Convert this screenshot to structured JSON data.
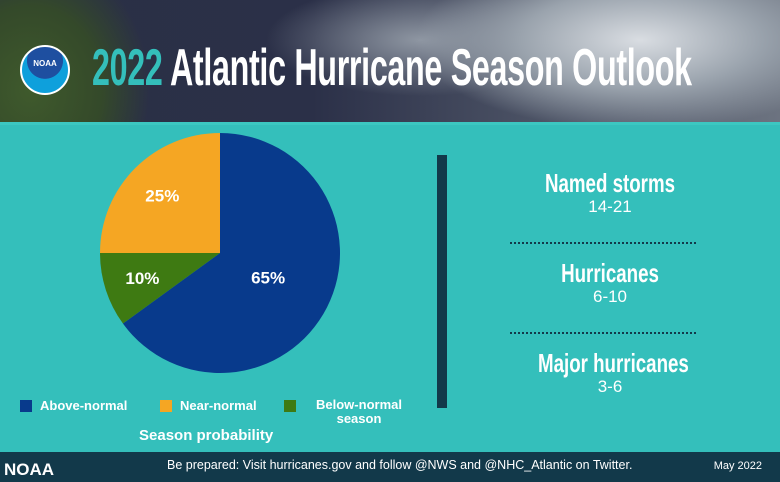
{
  "header": {
    "logo_text": "NOAA",
    "title_year": "2022",
    "title_rest": "Atlantic Hurricane Season Outlook"
  },
  "chart_data": {
    "type": "pie",
    "title": "Season probability",
    "categories": [
      "Above-normal",
      "Below-normal season",
      "Near-normal"
    ],
    "values": [
      65,
      10,
      25
    ],
    "data_labels": [
      "65%",
      "10%",
      "25%"
    ],
    "colors": [
      "#083a8c",
      "#3e7a12",
      "#f5a623"
    ],
    "legend": [
      {
        "label": "Above-normal",
        "color": "#083a8c"
      },
      {
        "label": "Near-normal",
        "color": "#f5a623"
      },
      {
        "label": "Below-normal season",
        "color": "#3e7a12"
      }
    ],
    "legend_placement": "bottom"
  },
  "stats": [
    {
      "label": "Named storms",
      "value": "14-21"
    },
    {
      "label": "Hurricanes",
      "value": "6-10"
    },
    {
      "label": "Major hurricanes",
      "value": "3-6"
    }
  ],
  "footer": {
    "brand": "NOAA",
    "message": "Be prepared: Visit hurricanes.gov and follow @NWS and @NHC_Atlantic on Twitter.",
    "date": "May 2022"
  }
}
